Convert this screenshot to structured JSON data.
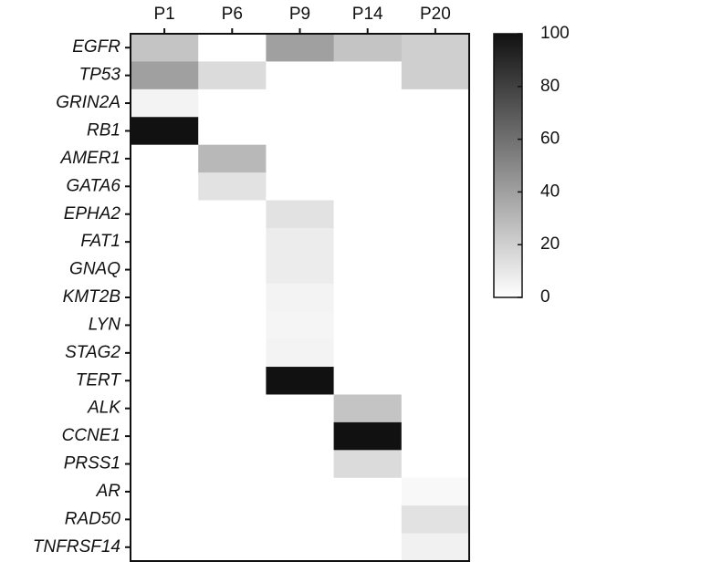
{
  "chart_data": {
    "type": "heatmap",
    "x_categories": [
      "P1",
      "P6",
      "P9",
      "P14",
      "P20"
    ],
    "y_categories": [
      "EGFR",
      "TP53",
      "GRIN2A",
      "RB1",
      "AMER1",
      "GATA6",
      "EPHA2",
      "FAT1",
      "GNAQ",
      "KMT2B",
      "LYN",
      "STAG2",
      "TERT",
      "ALK",
      "CCNE1",
      "PRSS1",
      "AR",
      "RAD50",
      "TNFRSF14"
    ],
    "values": [
      [
        25,
        0,
        40,
        25,
        20
      ],
      [
        40,
        15,
        0,
        0,
        20
      ],
      [
        5,
        0,
        0,
        0,
        0
      ],
      [
        100,
        0,
        0,
        0,
        0
      ],
      [
        0,
        30,
        0,
        0,
        0
      ],
      [
        0,
        12,
        0,
        0,
        0
      ],
      [
        0,
        0,
        12,
        0,
        0
      ],
      [
        0,
        0,
        8,
        0,
        0
      ],
      [
        0,
        0,
        8,
        0,
        0
      ],
      [
        0,
        0,
        5,
        0,
        0
      ],
      [
        0,
        0,
        4,
        0,
        0
      ],
      [
        0,
        0,
        5,
        0,
        0
      ],
      [
        0,
        0,
        100,
        0,
        0
      ],
      [
        0,
        0,
        0,
        25,
        0
      ],
      [
        0,
        0,
        0,
        100,
        0
      ],
      [
        0,
        0,
        0,
        15,
        0
      ],
      [
        0,
        0,
        0,
        0,
        3
      ],
      [
        0,
        0,
        0,
        0,
        12
      ],
      [
        0,
        0,
        0,
        0,
        6
      ]
    ],
    "zlim": [
      0,
      100
    ],
    "zticks": [
      0,
      20,
      40,
      60,
      80,
      100
    ]
  }
}
